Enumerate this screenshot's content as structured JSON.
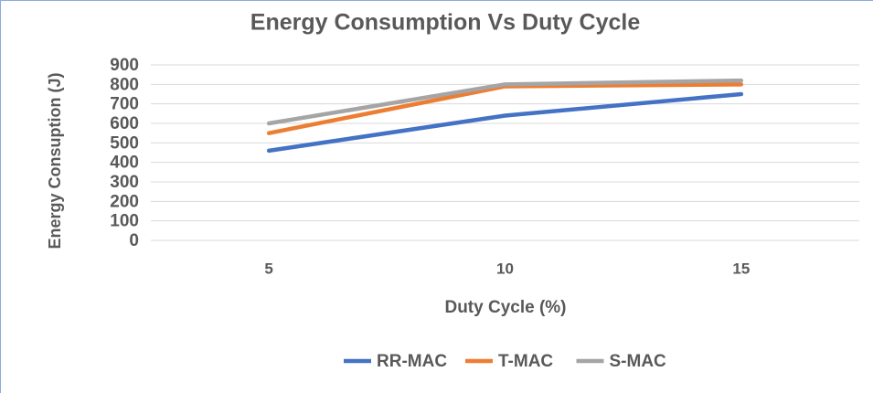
{
  "chart_data": {
    "type": "line",
    "title": "Energy Consumption Vs Duty Cycle",
    "x_label": "Duty Cycle (%)",
    "y_label": "Energy Consuption (J)",
    "categories": [
      "5",
      "10",
      "15"
    ],
    "series": [
      {
        "name": "RR-MAC",
        "color": "#4472c4",
        "values": [
          460,
          640,
          750
        ]
      },
      {
        "name": "T-MAC",
        "color": "#ed7d31",
        "values": [
          550,
          790,
          800
        ]
      },
      {
        "name": "S-MAC",
        "color": "#a5a5a5",
        "values": [
          600,
          800,
          820
        ]
      }
    ],
    "ylim": [
      0,
      900
    ],
    "yticks": [
      0,
      100,
      200,
      300,
      400,
      500,
      600,
      700,
      800,
      900
    ],
    "grid": true,
    "legend": "bottom"
  }
}
